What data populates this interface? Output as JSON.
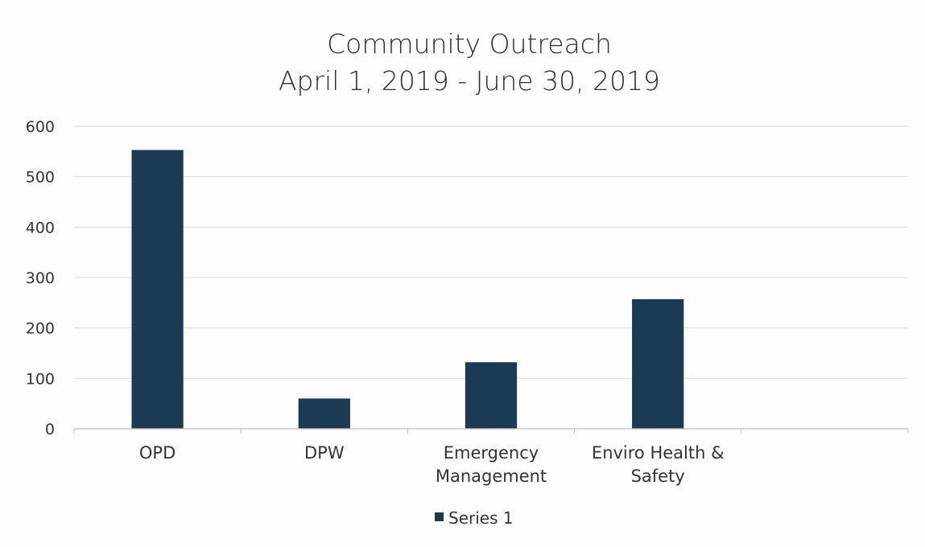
{
  "chart_data": {
    "type": "bar",
    "title_lines": [
      "Community Outreach",
      "April 1, 2019 - June 30, 2019"
    ],
    "categories": [
      [
        "OPD"
      ],
      [
        "DPW"
      ],
      [
        "Emergency",
        "Management"
      ],
      [
        "Enviro Health &",
        "Safety"
      ],
      [
        ""
      ]
    ],
    "series": [
      {
        "name": "Series 1",
        "values": [
          553,
          60,
          132,
          257,
          null
        ]
      }
    ],
    "xlabel": "",
    "ylabel": "",
    "ylim": [
      0,
      600
    ],
    "yticks": [
      0,
      100,
      200,
      300,
      400,
      500,
      600
    ],
    "grid": true,
    "legend_position": "bottom",
    "colors": {
      "bar": "#1b3a54",
      "grid": "#d9d9d9",
      "axis": "#bfbfbf",
      "text": "#333333"
    }
  }
}
